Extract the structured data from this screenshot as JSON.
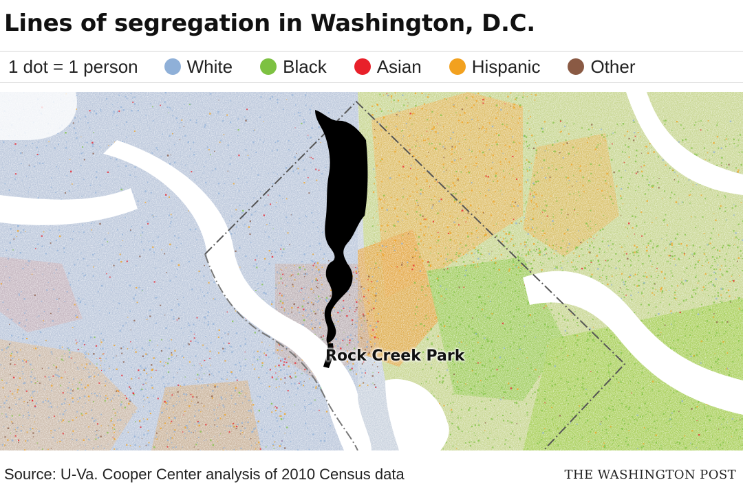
{
  "header": {
    "title": "Lines of segregation in Washington, D.C."
  },
  "legend": {
    "scale_label": "1 dot = 1 person",
    "items": [
      {
        "label": "White",
        "color": "#8fb0d8"
      },
      {
        "label": "Black",
        "color": "#7dc142"
      },
      {
        "label": "Asian",
        "color": "#e8202a"
      },
      {
        "label": "Hispanic",
        "color": "#f2a11f"
      },
      {
        "label": "Other",
        "color": "#8a5a44"
      }
    ]
  },
  "map": {
    "park_label": "Rock Creek Park",
    "park_color": "#000000",
    "boundary_color": "#555555",
    "river_color": "#ffffff"
  },
  "footer": {
    "source": "Source: U-Va. Cooper Center analysis of 2010 Census data",
    "credit": "THE WASHINGTON POST"
  }
}
